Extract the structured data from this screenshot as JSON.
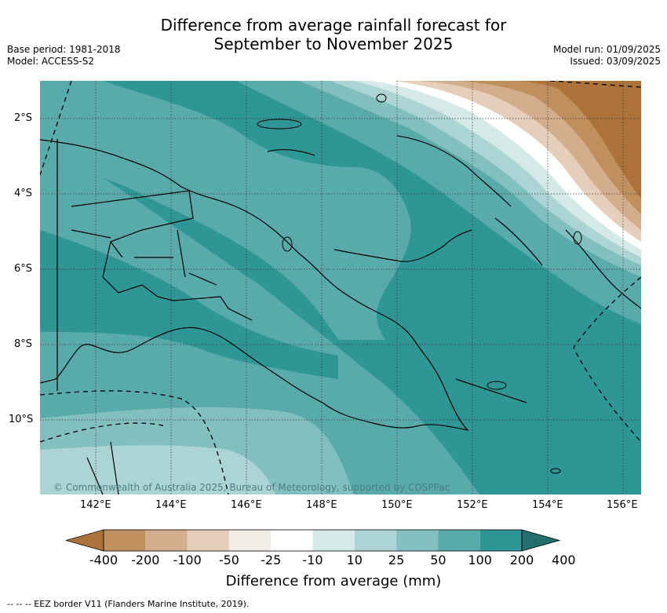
{
  "header": {
    "title_line1": "Difference from average rainfall forecast for",
    "title_line2": "September to November 2025",
    "base_period": "Base period: 1981-2018",
    "model": "Model: ACCESS-S2",
    "model_run": "Model run: 01/09/2025",
    "issued": "Issued: 03/09/2025"
  },
  "map": {
    "lat_labels": [
      "2°S",
      "4°S",
      "6°S",
      "8°S",
      "10°S"
    ],
    "lon_labels": [
      "142°E",
      "144°E",
      "146°E",
      "148°E",
      "150°E",
      "152°E",
      "154°E",
      "156°E"
    ],
    "copyright": "© Commonwealth of Australia 2025, Bureau of Meteorology, supported by COSPPac"
  },
  "colorbar": {
    "title": "Difference from average (mm)",
    "ticks": [
      "-400",
      "-200",
      "-100",
      "-50",
      "-25",
      "-10",
      "10",
      "25",
      "50",
      "100",
      "200",
      "400"
    ],
    "colors": [
      "#ab7339",
      "#c08f5e",
      "#d3ae8c",
      "#e6cfba",
      "#f2ece6",
      "#ffffff",
      "#d5e9e8",
      "#acd4d4",
      "#82bfbf",
      "#58aaab",
      "#2f9696",
      "#246e6e"
    ]
  },
  "footer": {
    "legend_text": "-- -- -- EEZ border V11 (Flanders Marine Institute, 2019)."
  }
}
